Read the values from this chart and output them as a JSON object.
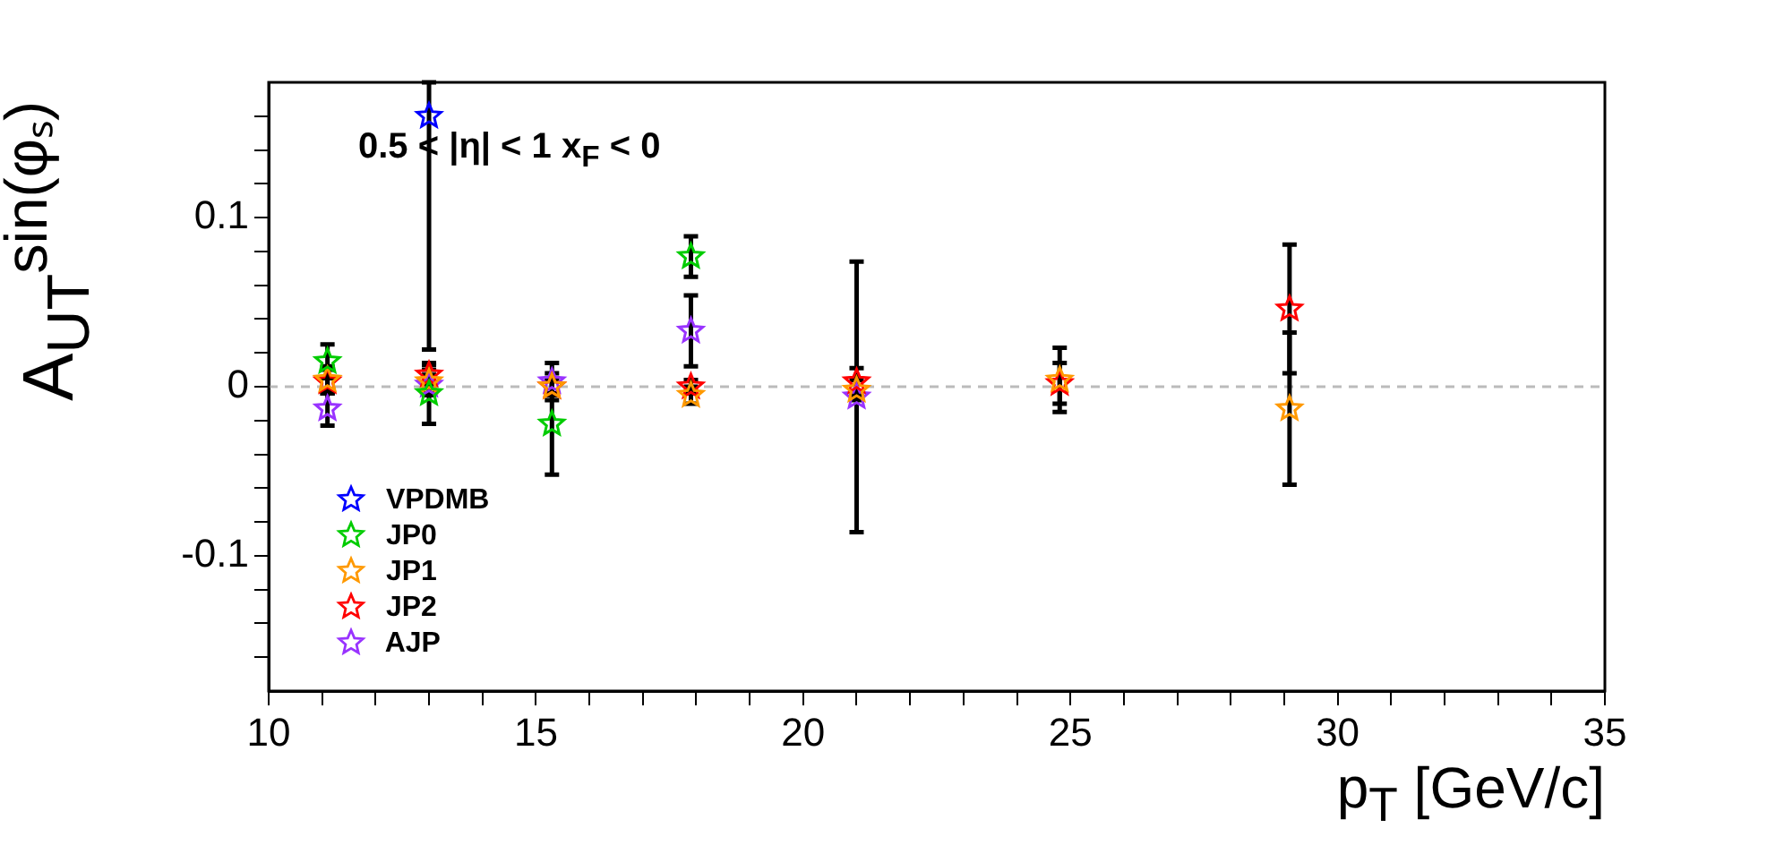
{
  "chart_data": {
    "type": "scatter",
    "xlabel": "p$_{T}$ [GeV/c]",
    "ylabel": "A$_{UT}$$^{sin(φₛ)}$",
    "annotations": [
      "0.5 < |η| < 1   x$_{F}$ < 0"
    ],
    "x": [
      11.1,
      13.0,
      15.3,
      17.9,
      21.0,
      24.8,
      29.1
    ],
    "series": [
      {
        "name": "VPDMB",
        "color": "#0000ff",
        "values": [
          null,
          0.16,
          null,
          null,
          null,
          null,
          null
        ],
        "errors": [
          null,
          [
            0.022,
            0.18
          ],
          null,
          null,
          null,
          null,
          null
        ]
      },
      {
        "name": "JP0",
        "color": "#00cc00",
        "values": [
          0.015,
          -0.004,
          -0.022,
          0.077,
          null,
          null,
          null
        ],
        "errors": [
          0.01,
          0.018,
          0.03,
          0.012,
          null,
          null,
          null
        ]
      },
      {
        "name": "JP1",
        "color": "#ff9900",
        "values": [
          0.004,
          0.003,
          0.0,
          -0.005,
          -0.002,
          0.004,
          -0.013
        ],
        "errors": [
          0.008,
          0.007,
          0.005,
          0.005,
          0.006,
          0.019,
          0.045
        ]
      },
      {
        "name": "JP2",
        "color": "#ff0000",
        "values": [
          0.003,
          0.007,
          0.0,
          0.0,
          0.003,
          0.002,
          0.046
        ],
        "errors": [
          0.007,
          0.006,
          0.004,
          0.004,
          0.008,
          0.012,
          0.038
        ]
      },
      {
        "name": "AJP",
        "color": "#9933ff",
        "values": [
          -0.013,
          0.001,
          0.003,
          0.033,
          -0.006,
          null,
          null
        ],
        "errors": [
          0.01,
          0.006,
          0.011,
          0.021,
          0.08,
          null,
          null
        ]
      }
    ],
    "xlim": [
      10,
      35
    ],
    "xticks": [
      10,
      {
        "value": 11,
        "label": null
      },
      {
        "value": 12,
        "label": null
      },
      {
        "value": 13,
        "label": null
      },
      {
        "value": 14,
        "label": null
      },
      15,
      {
        "value": 16,
        "label": null
      },
      {
        "value": 17,
        "label": null
      },
      {
        "value": 18,
        "label": null
      },
      {
        "value": 19,
        "label": null
      },
      20,
      {
        "value": 21,
        "label": null
      },
      {
        "value": 22,
        "label": null
      },
      {
        "value": 23,
        "label": null
      },
      {
        "value": 24,
        "label": null
      },
      25,
      {
        "value": 26,
        "label": null
      },
      {
        "value": 27,
        "label": null
      },
      {
        "value": 28,
        "label": null
      },
      {
        "value": 29,
        "label": null
      },
      30,
      {
        "value": 31,
        "label": null
      },
      {
        "value": 32,
        "label": null
      },
      {
        "value": 33,
        "label": null
      },
      {
        "value": 34,
        "label": null
      },
      35
    ],
    "ylim": [
      -0.18,
      0.18
    ],
    "yticks": [
      {
        "value": -0.16,
        "label": null
      },
      {
        "value": -0.14,
        "label": null
      },
      {
        "value": -0.12,
        "label": null
      },
      -0.1,
      {
        "value": -0.08,
        "label": null
      },
      {
        "value": -0.06,
        "label": null
      },
      {
        "value": -0.04,
        "label": null
      },
      {
        "value": -0.02,
        "label": null
      },
      0,
      {
        "value": 0.02,
        "label": null
      },
      {
        "value": 0.04,
        "label": null
      },
      {
        "value": 0.06,
        "label": null
      },
      {
        "value": 0.08,
        "label": null
      },
      0.1,
      {
        "value": 0.12,
        "label": null
      },
      {
        "value": 0.14,
        "label": null
      },
      {
        "value": 0.16,
        "label": null
      }
    ],
    "ref_lines": [
      {
        "axis": "y",
        "value": 0,
        "color": "#bbbbbb",
        "line_style": "dashed"
      }
    ],
    "legend": "bottom left",
    "marker": "star",
    "grid": false
  }
}
